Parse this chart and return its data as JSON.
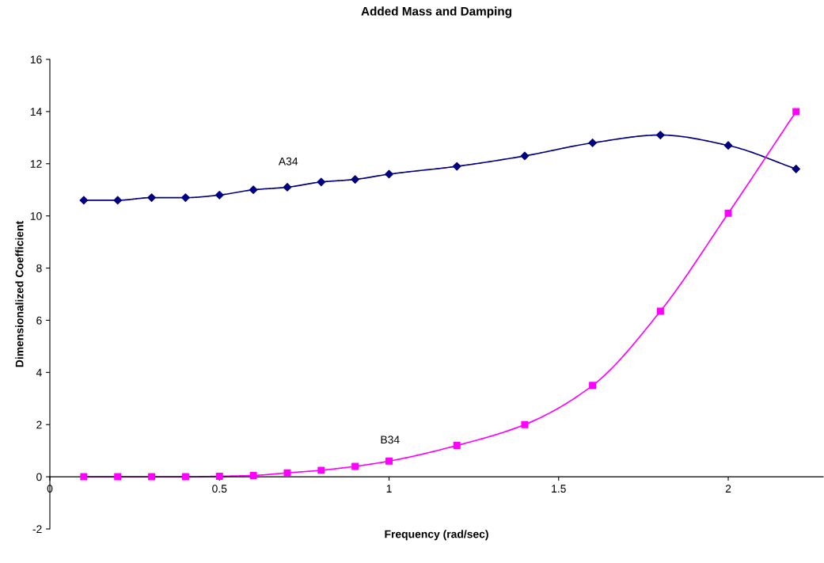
{
  "chart_data": {
    "type": "line",
    "title": "Added Mass and Damping",
    "xlabel": "Frequency (rad/sec)",
    "ylabel": "Dimensionalized Coefficient",
    "x": [
      0.1,
      0.2,
      0.3,
      0.4,
      0.5,
      0.6,
      0.7,
      0.8,
      0.9,
      1.0,
      1.2,
      1.4,
      1.6,
      1.8,
      2.0,
      2.2
    ],
    "series": [
      {
        "name": "A34",
        "color": "#000080",
        "marker": "diamond",
        "values": [
          10.6,
          10.6,
          10.7,
          10.7,
          10.8,
          11.0,
          11.1,
          11.3,
          11.4,
          11.6,
          11.9,
          12.3,
          12.8,
          13.1,
          12.7,
          11.8
        ]
      },
      {
        "name": "B34",
        "color": "#ff00ff",
        "marker": "square",
        "values": [
          0,
          0,
          0,
          0,
          0.02,
          0.05,
          0.15,
          0.25,
          0.4,
          0.6,
          1.2,
          2.0,
          3.5,
          6.35,
          10.1,
          14.0
        ]
      }
    ],
    "xlim": [
      0,
      2.28
    ],
    "xticks": [
      0,
      0.5,
      1,
      1.5,
      2
    ],
    "ylim": [
      -2,
      16
    ],
    "yticks": [
      -2,
      0,
      2,
      4,
      6,
      8,
      10,
      12,
      14,
      16
    ],
    "grid": false,
    "legend": false
  }
}
